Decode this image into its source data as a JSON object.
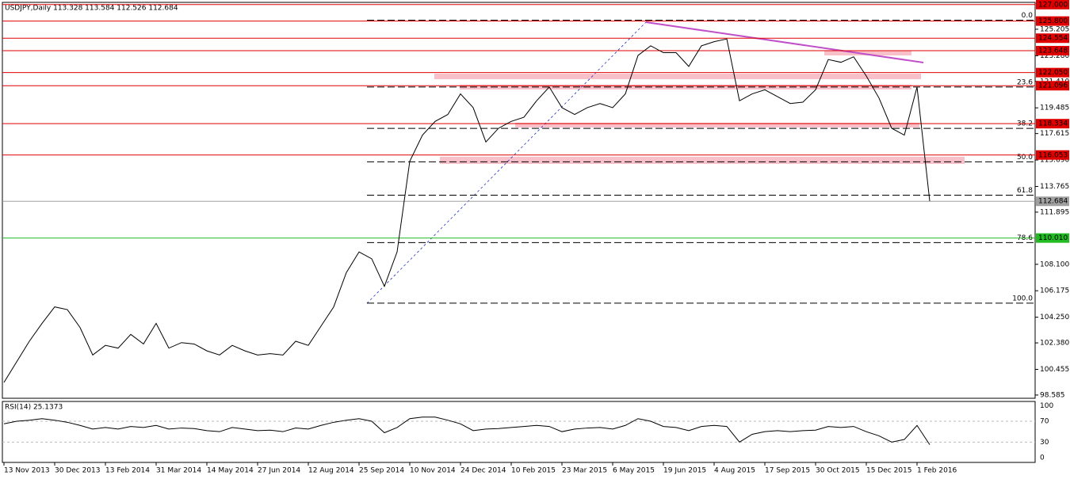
{
  "chart_data": {
    "type": "line",
    "title": "USDJPY,Daily  113.328 113.584 112.526 112.684",
    "categories": [
      "13 Nov 2013",
      null,
      null,
      null,
      "30 Dec 2013",
      null,
      null,
      null,
      "13 Feb 2014",
      null,
      null,
      null,
      "31 Mar 2014",
      null,
      null,
      null,
      "14 May 2014",
      null,
      null,
      null,
      "27 Jun 2014",
      null,
      null,
      null,
      "12 Aug 2014",
      null,
      null,
      null,
      "25 Sep 2014",
      null,
      null,
      null,
      "10 Nov 2014",
      null,
      null,
      null,
      "24 Dec 2014",
      null,
      null,
      null,
      "10 Feb 2015",
      null,
      null,
      null,
      "23 Mar 2015",
      null,
      null,
      null,
      "6 May 2015",
      null,
      null,
      null,
      "19 Jun 2015",
      null,
      null,
      null,
      "4 Aug 2015",
      null,
      null,
      null,
      "17 Sep 2015",
      null,
      null,
      null,
      "30 Oct 2015",
      null,
      null,
      null,
      "15 Dec 2015",
      null,
      null,
      null,
      "1 Feb 2016",
      null
    ],
    "series": [
      {
        "name": "USDJPY",
        "color": "#000000",
        "values": [
          99.5,
          101.0,
          102.5,
          103.8,
          105.0,
          104.8,
          103.5,
          101.5,
          102.2,
          102.0,
          103.0,
          102.3,
          103.8,
          102.0,
          102.4,
          102.3,
          101.8,
          101.5,
          102.2,
          101.8,
          101.5,
          101.6,
          101.5,
          102.5,
          102.2,
          103.6,
          105.0,
          107.5,
          109.0,
          108.5,
          106.5,
          109.0,
          115.6,
          117.5,
          118.5,
          119.0,
          120.5,
          119.5,
          117.0,
          118.0,
          118.5,
          118.8,
          120.0,
          121.0,
          119.5,
          119.0,
          119.5,
          119.8,
          119.5,
          120.5,
          123.3,
          124.0,
          123.5,
          123.5,
          122.5,
          124.0,
          124.3,
          124.5,
          120.0,
          120.5,
          120.8,
          120.3,
          119.8,
          119.9,
          120.8,
          123.0,
          122.8,
          123.2,
          121.8,
          120.2,
          118.0,
          117.5,
          121.0,
          112.7
        ]
      }
    ],
    "ylim": [
      98.35,
      127.16
    ],
    "yticks": [
      {
        "value": 125.205,
        "label": "125.205"
      },
      {
        "value": 123.28,
        "label": "123.280"
      },
      {
        "value": 121.41,
        "label": "121.410"
      },
      119.485,
      117.615,
      {
        "value": 115.69,
        "label": "115.690"
      },
      113.765,
      111.895,
      {
        "value": 108.1,
        "label": "108.100"
      },
      106.175,
      {
        "value": 104.25,
        "label": "104.250"
      },
      {
        "value": 102.38,
        "label": "102.380"
      },
      100.455,
      98.585
    ],
    "price_levels": [
      {
        "value": 127,
        "label": "127.000",
        "color": "#e00000"
      },
      {
        "value": 125.8,
        "label": "125.800",
        "color": "#e00000"
      },
      {
        "value": 124.554,
        "label": "124.554",
        "color": "#e00000"
      },
      {
        "value": 123.648,
        "label": "123.648",
        "color": "#e00000"
      },
      {
        "value": 122.05,
        "label": "122.050",
        "color": "#e00000"
      },
      {
        "value": 121.096,
        "label": "121.096",
        "color": "#e00000"
      },
      {
        "value": 118.334,
        "label": "118.334",
        "color": "#e00000"
      },
      {
        "value": 116.053,
        "label": "116.053",
        "color": "#e00000"
      },
      {
        "value": 112.684,
        "label": "112.684",
        "color": "#a0a0a0"
      },
      {
        "value": 110.01,
        "label": "110.010",
        "color": "#22bb22"
      }
    ],
    "fib_levels": [
      {
        "label": "0.0",
        "price": 125.86
      },
      {
        "label": "23.6",
        "price": 121.0
      },
      {
        "label": "38.2",
        "price": 117.99
      },
      {
        "label": "50.0",
        "price": 115.56
      },
      {
        "label": "61.8",
        "price": 113.13
      },
      {
        "label": "78.6",
        "price": 109.68
      },
      {
        "label": "100.0",
        "price": 105.27
      }
    ],
    "rsi": {
      "title": "RSI(14) 25.1373",
      "ylim": [
        -9,
        108
      ],
      "yticks": [
        0,
        30,
        70,
        100
      ],
      "values": [
        65,
        70,
        72,
        75,
        72,
        68,
        62,
        55,
        58,
        55,
        60,
        58,
        62,
        55,
        57,
        56,
        52,
        50,
        58,
        55,
        52,
        53,
        50,
        57,
        55,
        62,
        68,
        72,
        75,
        70,
        48,
        58,
        75,
        78,
        78,
        72,
        65,
        52,
        55,
        56,
        58,
        60,
        62,
        60,
        50,
        55,
        57,
        58,
        55,
        62,
        75,
        70,
        60,
        58,
        52,
        60,
        62,
        60,
        30,
        45,
        50,
        52,
        50,
        52,
        53,
        60,
        58,
        60,
        50,
        42,
        30,
        35,
        62,
        25
      ]
    }
  }
}
